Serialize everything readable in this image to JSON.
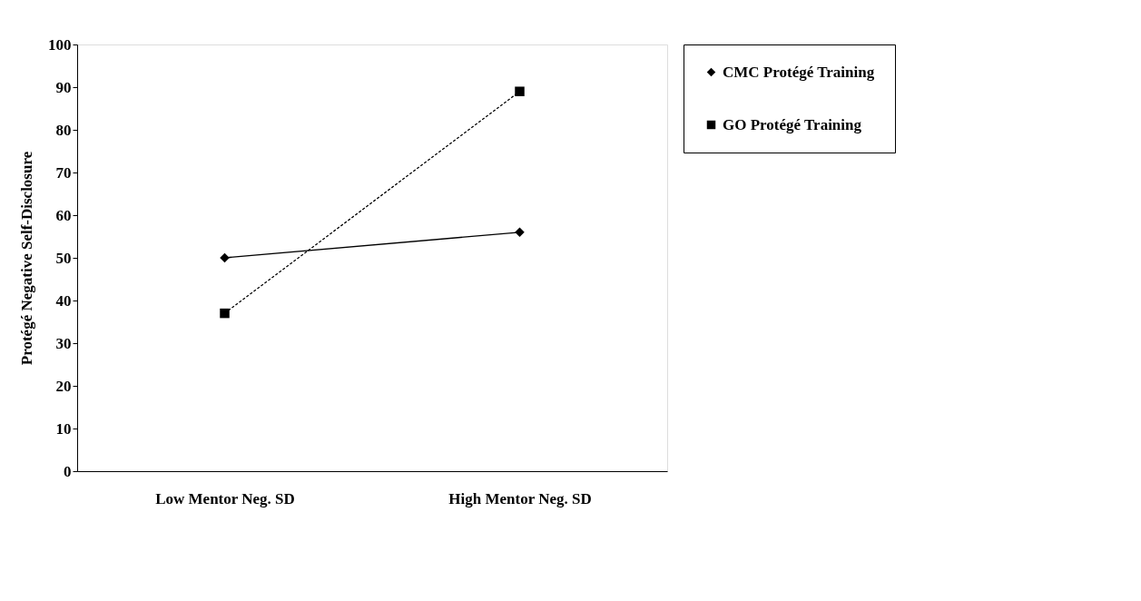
{
  "chart_data": {
    "type": "line",
    "ylabel": "Protégé Negative Self-Disclosure",
    "categories": [
      "Low Mentor Neg. SD",
      "High Mentor Neg. SD"
    ],
    "series": [
      {
        "name": "CMC Protégé Training",
        "color": "#000000",
        "values": [
          50,
          56
        ],
        "marker": "diamond",
        "line_style": "solid"
      },
      {
        "name": "GO Protégé Training",
        "color": "#000000",
        "values": [
          37,
          89
        ],
        "marker": "square",
        "line_style": "dashed"
      }
    ],
    "ylim": [
      0,
      100
    ],
    "yticks": [
      0,
      10,
      20,
      30,
      40,
      50,
      60,
      70,
      80,
      90,
      100
    ],
    "grid": false,
    "legend": "right"
  }
}
